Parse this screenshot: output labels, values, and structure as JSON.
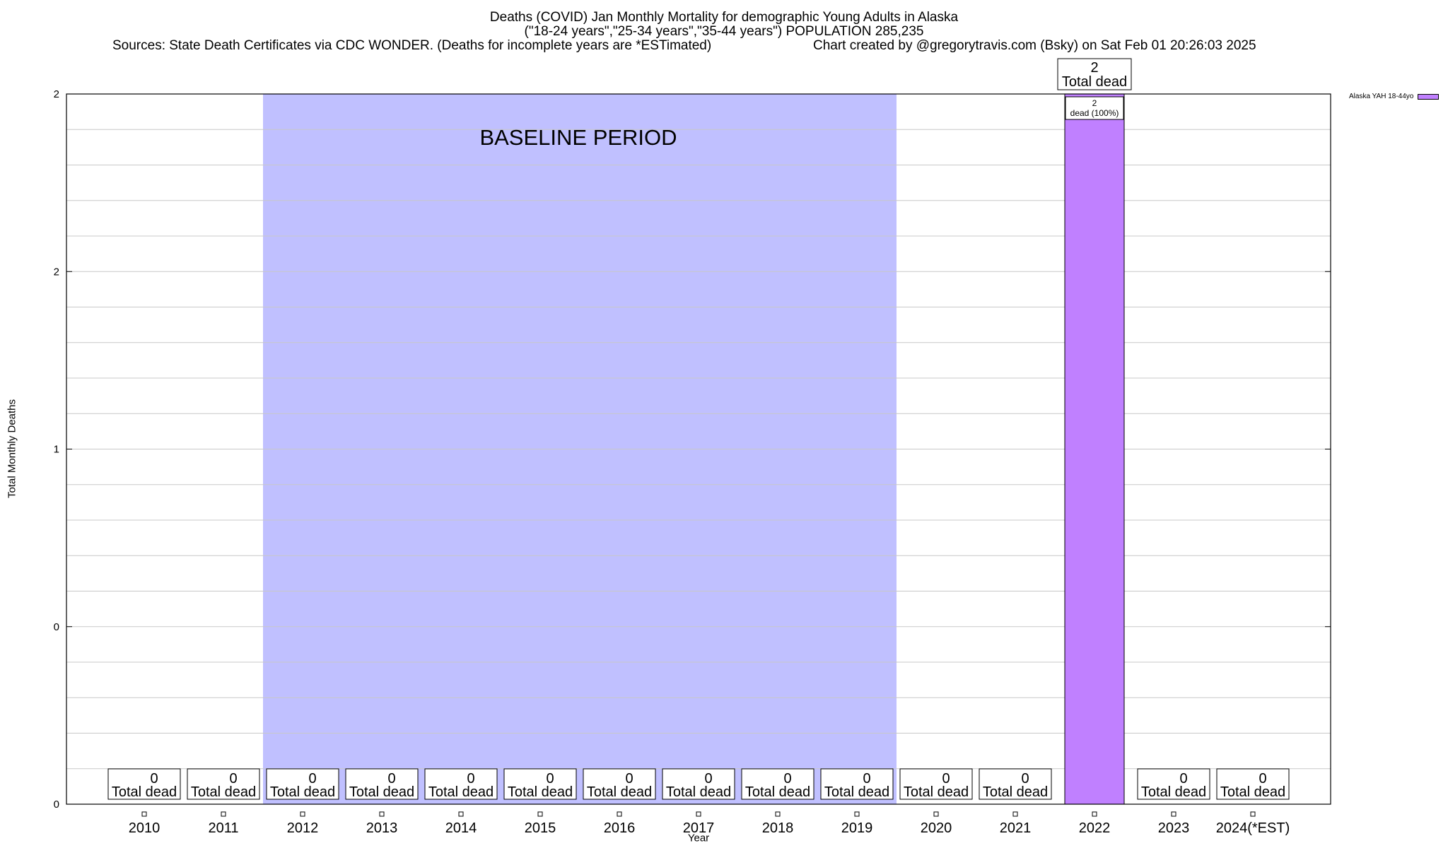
{
  "header": {
    "title_line1": "Deaths (COVID) Jan Monthly Mortality for demographic Young Adults in Alaska",
    "title_line2": "(\"18-24 years\",\"25-34 years\",\"35-44 years\") POPULATION 285,235",
    "sources": "Sources: State Death Certificates via CDC WONDER. (Deaths for incomplete years are *ESTimated)",
    "credit": "Chart created by @gregorytravis.com (Bsky) on Sat Feb 01 20:26:03 2025"
  },
  "chart_data": {
    "type": "bar",
    "categories": [
      "2010",
      "2011",
      "2012",
      "2013",
      "2014",
      "2015",
      "2016",
      "2017",
      "2018",
      "2019",
      "2020",
      "2021",
      "2022",
      "2023",
      "2024(*EST)"
    ],
    "values": [
      0,
      0,
      0,
      0,
      0,
      0,
      0,
      0,
      0,
      0,
      0,
      0,
      2,
      0,
      0
    ],
    "series": [
      {
        "name": "Alaska YAH 18-44yo",
        "values": [
          0,
          0,
          0,
          0,
          0,
          0,
          0,
          0,
          0,
          0,
          0,
          0,
          2,
          0,
          0
        ],
        "color": "#c080ff"
      }
    ],
    "xlabel": "Year",
    "ylabel": "Total Monthly Deaths",
    "ylim": [
      0,
      2
    ],
    "yticks": [
      0,
      0.5,
      1,
      1.5,
      2
    ],
    "ytick_labels": [
      "0",
      "0",
      "1",
      "2",
      "2"
    ],
    "grid": true,
    "legend_position": "top-right outside",
    "total_label_text": "Total dead",
    "inbar_label_text": "dead (100%)",
    "baseline": {
      "label": "BASELINE PERIOD",
      "start": "2012",
      "end": "2019",
      "color": "#c0c0ff"
    }
  }
}
